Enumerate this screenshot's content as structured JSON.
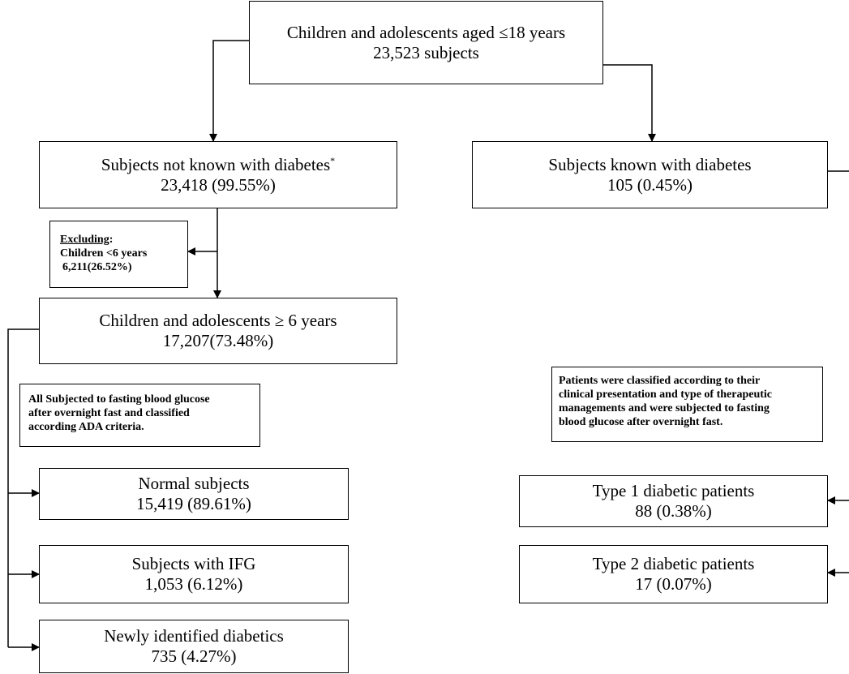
{
  "root": {
    "title": "Children and adolescents aged ≤18 years",
    "count": "23,523 subjects"
  },
  "not_known": {
    "title": "Subjects not known with diabetes",
    "marker": "*",
    "count": "23,418 (99.55%)"
  },
  "known": {
    "title": "Subjects known with diabetes",
    "count": "105 (0.45%)"
  },
  "excluding": {
    "heading": "Excluding",
    "colon": ":",
    "line1": "Children <6 years",
    "line2": "6,211(26.52%)"
  },
  "ge6": {
    "title": "Children and adolescents ≥ 6 years",
    "count": "17,207(73.48%)"
  },
  "ada_note": {
    "line1": "All Subjected to fasting blood glucose",
    "line2": "after overnight fast and classified",
    "line3": "according ADA criteria."
  },
  "classify_note": {
    "line1": "Patients were classified according to their",
    "line2": "clinical presentation and type of therapeutic",
    "line3": "managements and were subjected to fasting",
    "line4": "blood glucose after overnight fast."
  },
  "normal": {
    "title": "Normal subjects",
    "count": "15,419 (89.61%)"
  },
  "ifg": {
    "title": "Subjects with IFG",
    "count": "1,053 (6.12%)"
  },
  "newly": {
    "title": "Newly identified diabetics",
    "count": "735 (4.27%)"
  },
  "type1": {
    "title": "Type 1 diabetic patients",
    "count": "88 (0.38%)"
  },
  "type2": {
    "title": "Type 2 diabetic patients",
    "count": "17 (0.07%)"
  }
}
